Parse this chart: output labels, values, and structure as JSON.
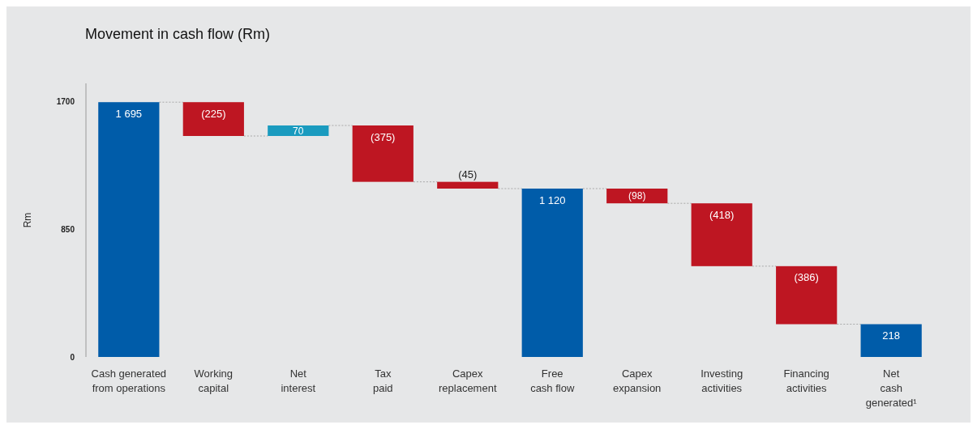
{
  "chart_data": {
    "type": "bar",
    "title": "Movement in cash flow (Rm)",
    "ylabel": "Rm",
    "categories": [
      "Cash generated\nfrom operations",
      "Working\ncapital",
      "Net\ninterest",
      "Tax\npaid",
      "Capex\nreplacement",
      "Free\ncash flow",
      "Capex\nexpansion",
      "Investing\nactivities",
      "Financing\nactivities",
      "Net\ncash\ngenerated¹"
    ],
    "values": [
      1695,
      -225,
      70,
      -375,
      -45,
      1120,
      -98,
      -418,
      -386,
      218
    ],
    "base": [
      0,
      1695,
      1470,
      1540,
      1165,
      0,
      1120,
      1022,
      604,
      0
    ],
    "colors": [
      "#005ca9",
      "#be1622",
      "#1a9bbf",
      "#be1622",
      "#be1622",
      "#005ca9",
      "#be1622",
      "#be1622",
      "#be1622",
      "#005ca9"
    ],
    "value_labels": [
      "1 695",
      "(225)",
      "70",
      "(375)",
      "(45)",
      "1 120",
      "(98)",
      "(418)",
      "(386)",
      "218"
    ],
    "ylim": [
      0,
      1820
    ],
    "yticks": [
      0,
      850,
      1700
    ],
    "grid": false
  }
}
